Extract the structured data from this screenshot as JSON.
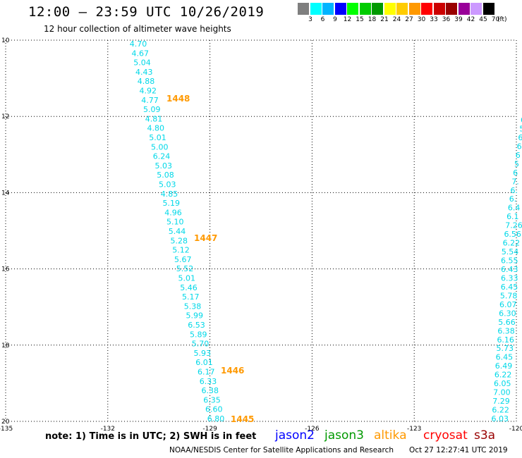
{
  "header": {
    "title": "12:00 – 23:59 UTC 10/26/2019",
    "subtitle": "12 hour collection of altimeter wave heights"
  },
  "colorbar": {
    "unit": "(ft)",
    "labels": [
      "3",
      "6",
      "9",
      "12",
      "15",
      "18",
      "21",
      "24",
      "27",
      "30",
      "33",
      "36",
      "39",
      "42",
      "45",
      "70"
    ],
    "colors": [
      "#7f7f7f",
      "#00ffff",
      "#00b4ff",
      "#0000ff",
      "#00ff00",
      "#00cc00",
      "#009900",
      "#ffff00",
      "#ffcc00",
      "#ff9900",
      "#ff0000",
      "#cc0000",
      "#990000",
      "#990099",
      "#cc99ff",
      "#000000"
    ]
  },
  "map": {
    "lon_ticks": [
      "-135",
      "-132",
      "-129",
      "-126",
      "-123",
      "-120"
    ],
    "lat_ticks": [
      "10",
      "12",
      "14",
      "16",
      "18",
      "20"
    ],
    "lon_range": [
      -135,
      -120
    ],
    "lat_range": [
      10,
      20
    ],
    "grid": "dotted",
    "value_color": "#00d8e8",
    "time_color": "#ff9900",
    "track_values": [
      "4.70",
      "4.67",
      "5.04",
      "4.43",
      "4.88",
      "4.92",
      "4.77",
      "5.09",
      "4.81",
      "4.80",
      "5.01",
      "5.00",
      "6.24",
      "5.03",
      "5.08",
      "5.03",
      "4.85",
      "5.19",
      "4.96",
      "5.10",
      "5.44",
      "5.28",
      "5.12",
      "5.67",
      "5.52",
      "5.01",
      "5.46",
      "5.17",
      "5.38",
      "5.99",
      "6.53",
      "5.89",
      "5.70",
      "5.93",
      "6.01",
      "6.17",
      "6.33",
      "6.38",
      "6.35",
      "6.60",
      "6.80"
    ],
    "time_labels": [
      "1448",
      "1447",
      "1446",
      "1445"
    ],
    "right_track_values": [
      "6",
      "5",
      "6",
      "6",
      "6",
      "5",
      "6",
      "7.",
      "6.",
      "6.",
      "6.4",
      "6.1",
      "7.26",
      "6.56",
      "6.22",
      "5.54",
      "6.55",
      "6.43",
      "6.33",
      "6.45",
      "5.78",
      "6.07",
      "6.30",
      "5.66",
      "6.38",
      "6.16",
      "5.73",
      "6.45",
      "6.49",
      "6.22",
      "6.05",
      "7.00",
      "7.29",
      "6.22",
      "6.03"
    ]
  },
  "footer": {
    "note": "note:  1) Time is in UTC;  2) SWH is in feet",
    "satellites": [
      {
        "name": "jason2",
        "color": "#0000ff"
      },
      {
        "name": "jason3",
        "color": "#009900"
      },
      {
        "name": "altika",
        "color": "#ff9900"
      },
      {
        "name": "cryosat",
        "color": "#ff0000"
      },
      {
        "name": "s3a",
        "color": "#990000"
      }
    ],
    "credit": "NOAA/NESDIS Center for Satellite Applications and Research",
    "timestamp": "Oct 27 12:27:41 UTC 2019"
  }
}
